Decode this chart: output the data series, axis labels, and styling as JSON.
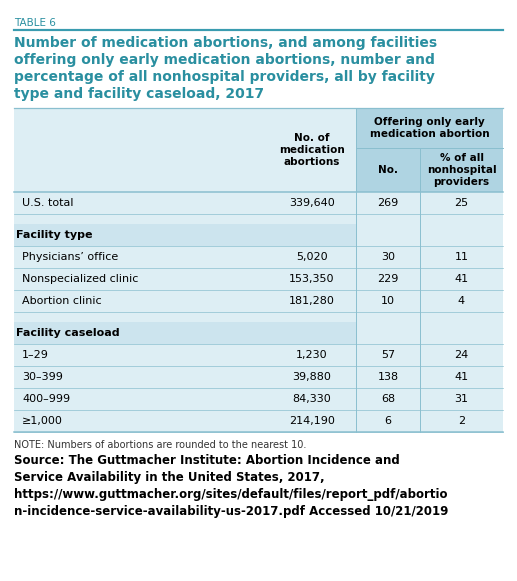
{
  "table_label": "TABLE 6",
  "title_line1": "Number of medication abortions, and among facilities",
  "title_line2": "offering only early medication abortions, number and",
  "title_line3": "percentage of all nonhospital providers, all by facility",
  "title_line4": "type and facility caseload, 2017",
  "col_header_1": "No. of\nmedication\nabortions",
  "col_header_span": "Offering only early\nmedication abortion",
  "col_header_2": "No.",
  "col_header_3": "% of all\nnonhospital\nproviders",
  "rows": [
    {
      "label": "U.S. total",
      "v1": "339,640",
      "v2": "269",
      "v3": "25",
      "bold": false,
      "section": false,
      "spacer": false
    },
    {
      "label": "",
      "v1": "",
      "v2": "",
      "v3": "",
      "bold": false,
      "section": false,
      "spacer": true
    },
    {
      "label": "Facility type",
      "v1": "",
      "v2": "",
      "v3": "",
      "bold": true,
      "section": true,
      "spacer": false
    },
    {
      "label": "Physicians’ office",
      "v1": "5,020",
      "v2": "30",
      "v3": "11",
      "bold": false,
      "section": false,
      "spacer": false
    },
    {
      "label": "Nonspecialized clinic",
      "v1": "153,350",
      "v2": "229",
      "v3": "41",
      "bold": false,
      "section": false,
      "spacer": false
    },
    {
      "label": "Abortion clinic",
      "v1": "181,280",
      "v2": "10",
      "v3": "4",
      "bold": false,
      "section": false,
      "spacer": false
    },
    {
      "label": "",
      "v1": "",
      "v2": "",
      "v3": "",
      "bold": false,
      "section": false,
      "spacer": true
    },
    {
      "label": "Facility caseload",
      "v1": "",
      "v2": "",
      "v3": "",
      "bold": true,
      "section": true,
      "spacer": false
    },
    {
      "label": "1–29",
      "v1": "1,230",
      "v2": "57",
      "v3": "24",
      "bold": false,
      "section": false,
      "spacer": false
    },
    {
      "label": "30–399",
      "v1": "39,880",
      "v2": "138",
      "v3": "41",
      "bold": false,
      "section": false,
      "spacer": false
    },
    {
      "label": "400–999",
      "v1": "84,330",
      "v2": "68",
      "v3": "31",
      "bold": false,
      "section": false,
      "spacer": false
    },
    {
      "label": "≥1,000",
      "v1": "214,190",
      "v2": "6",
      "v3": "2",
      "bold": false,
      "section": false,
      "spacer": false
    }
  ],
  "note": "NOTE: Numbers of abortions are rounded to the nearest 10.",
  "source_bold": "Source: The Guttmacher Institute: Abortion Incidence and\nService Availability in the United States, 2017,\nhttps://www.guttmacher.org/sites/default/files/report_pdf/abortio\nn-incidence-service-availability-us-2017.pdf Accessed 10/21/2019",
  "bg_light": "#ddeef4",
  "bg_header_span": "#afd4e2",
  "bg_section": "#cce4ee",
  "teal": "#3a9cb0",
  "line_color": "#8abfcf",
  "title_color": "#2a8fa0",
  "label_color": "#2a8fa0"
}
